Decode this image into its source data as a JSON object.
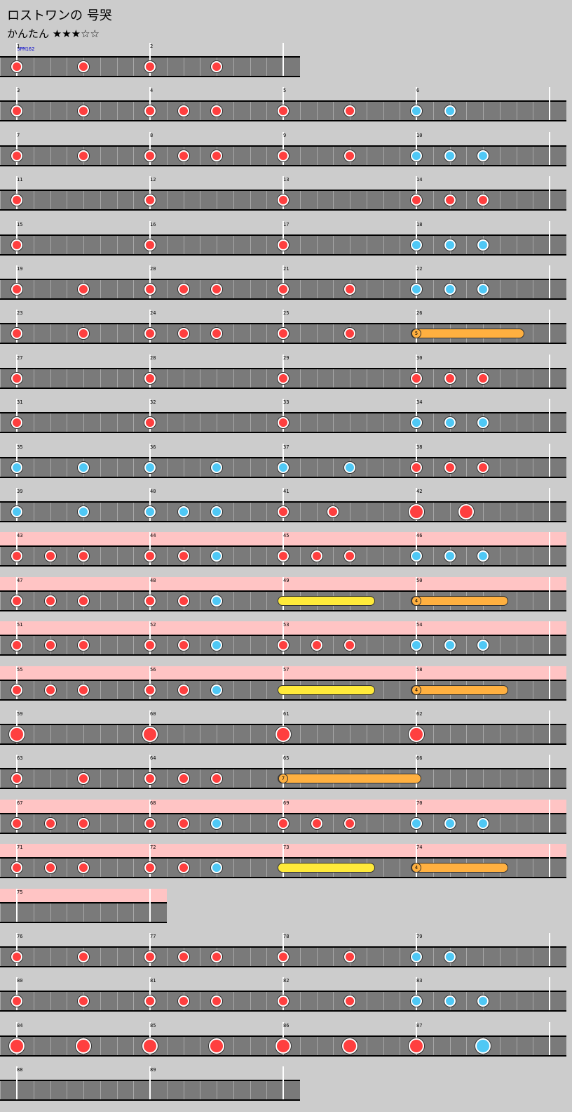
{
  "song": {
    "title": "ロストワンの 号哭",
    "difficulty": "かんたん ★★★☆☆",
    "bpm_label": "BPM162"
  },
  "rows": [
    {
      "measures": [
        1,
        2
      ],
      "pink": false,
      "big": true,
      "notes": [
        [
          "r",
          0
        ],
        [
          "r",
          4
        ],
        [
          "r",
          8
        ],
        [
          "r",
          12
        ]
      ],
      "rolls": []
    },
    {
      "measures": [
        3,
        4,
        5,
        6
      ],
      "pink": false,
      "notes": [
        [
          "r",
          0
        ],
        [
          "r",
          4
        ],
        [
          "r",
          8
        ],
        [
          "r",
          10
        ],
        [
          "r",
          12
        ],
        [
          "r",
          16
        ],
        [
          "r",
          20
        ],
        [
          "b",
          24
        ],
        [
          "b",
          26
        ]
      ],
      "rolls": []
    },
    {
      "measures": [
        7,
        8,
        9,
        10
      ],
      "pink": false,
      "notes": [
        [
          "r",
          0
        ],
        [
          "r",
          4
        ],
        [
          "r",
          8
        ],
        [
          "r",
          10
        ],
        [
          "r",
          12
        ],
        [
          "r",
          16
        ],
        [
          "r",
          20
        ],
        [
          "b",
          24
        ],
        [
          "b",
          26
        ],
        [
          "b",
          28
        ]
      ],
      "rolls": []
    },
    {
      "measures": [
        11,
        12,
        13,
        14
      ],
      "pink": false,
      "notes": [
        [
          "r",
          0
        ],
        [
          "r",
          8
        ],
        [
          "r",
          16
        ],
        [
          "r",
          24
        ],
        [
          "r",
          26
        ],
        [
          "r",
          28
        ]
      ],
      "rolls": []
    },
    {
      "measures": [
        15,
        16,
        17,
        18
      ],
      "pink": false,
      "notes": [
        [
          "r",
          0
        ],
        [
          "r",
          8
        ],
        [
          "r",
          16
        ],
        [
          "b",
          24
        ],
        [
          "b",
          26
        ],
        [
          "b",
          28
        ]
      ],
      "rolls": []
    },
    {
      "measures": [
        19,
        20,
        21,
        22
      ],
      "pink": false,
      "notes": [
        [
          "r",
          0
        ],
        [
          "r",
          4
        ],
        [
          "r",
          8
        ],
        [
          "r",
          10
        ],
        [
          "r",
          12
        ],
        [
          "r",
          16
        ],
        [
          "r",
          20
        ],
        [
          "b",
          24
        ],
        [
          "b",
          26
        ],
        [
          "b",
          28
        ]
      ],
      "rolls": []
    },
    {
      "measures": [
        23,
        24,
        25,
        26
      ],
      "pink": false,
      "notes": [
        [
          "r",
          0
        ],
        [
          "r",
          4
        ],
        [
          "r",
          8
        ],
        [
          "r",
          10
        ],
        [
          "r",
          12
        ],
        [
          "r",
          16
        ],
        [
          "r",
          20
        ]
      ],
      "rolls": [
        [
          "balloon",
          24,
          30.5,
          "5"
        ]
      ]
    },
    {
      "measures": [
        27,
        28,
        29,
        30
      ],
      "pink": false,
      "notes": [
        [
          "r",
          0
        ],
        [
          "r",
          8
        ],
        [
          "r",
          16
        ],
        [
          "r",
          24
        ],
        [
          "r",
          26
        ],
        [
          "r",
          28
        ]
      ],
      "rolls": []
    },
    {
      "measures": [
        31,
        32,
        33,
        34
      ],
      "pink": false,
      "notes": [
        [
          "r",
          0
        ],
        [
          "r",
          8
        ],
        [
          "r",
          16
        ],
        [
          "b",
          24
        ],
        [
          "b",
          26
        ],
        [
          "b",
          28
        ]
      ],
      "rolls": []
    },
    {
      "measures": [
        35,
        36,
        37,
        38
      ],
      "pink": false,
      "notes": [
        [
          "b",
          0
        ],
        [
          "b",
          4
        ],
        [
          "b",
          8
        ],
        [
          "b",
          12
        ],
        [
          "b",
          16
        ],
        [
          "b",
          20
        ],
        [
          "r",
          24
        ],
        [
          "r",
          26
        ],
        [
          "r",
          28
        ]
      ],
      "rolls": []
    },
    {
      "measures": [
        39,
        40,
        41,
        42
      ],
      "pink": false,
      "notes": [
        [
          "b",
          0
        ],
        [
          "b",
          4
        ],
        [
          "b",
          8
        ],
        [
          "b",
          10
        ],
        [
          "b",
          12
        ],
        [
          "r",
          16
        ],
        [
          "r",
          19
        ],
        [
          "R",
          24
        ],
        [
          "R",
          27
        ]
      ],
      "rolls": []
    },
    {
      "measures": [
        43,
        44,
        45,
        46
      ],
      "pink": true,
      "notes": [
        [
          "r",
          0
        ],
        [
          "r",
          2
        ],
        [
          "r",
          4
        ],
        [
          "r",
          8
        ],
        [
          "r",
          10
        ],
        [
          "b",
          12
        ],
        [
          "r",
          16
        ],
        [
          "r",
          18
        ],
        [
          "r",
          20
        ],
        [
          "b",
          24
        ],
        [
          "b",
          26
        ],
        [
          "b",
          28
        ]
      ],
      "rolls": []
    },
    {
      "measures": [
        47,
        48,
        49,
        50
      ],
      "pink": true,
      "notes": [
        [
          "r",
          0
        ],
        [
          "r",
          2
        ],
        [
          "r",
          4
        ],
        [
          "r",
          8
        ],
        [
          "r",
          10
        ],
        [
          "b",
          12
        ]
      ],
      "rolls": [
        [
          "yellow",
          16,
          21.5,
          ""
        ],
        [
          "balloon",
          24,
          29.5,
          "4"
        ]
      ]
    },
    {
      "measures": [
        51,
        52,
        53,
        54
      ],
      "pink": true,
      "notes": [
        [
          "r",
          0
        ],
        [
          "r",
          2
        ],
        [
          "r",
          4
        ],
        [
          "r",
          8
        ],
        [
          "r",
          10
        ],
        [
          "b",
          12
        ],
        [
          "r",
          16
        ],
        [
          "r",
          18
        ],
        [
          "r",
          20
        ],
        [
          "b",
          24
        ],
        [
          "b",
          26
        ],
        [
          "b",
          28
        ]
      ],
      "rolls": []
    },
    {
      "measures": [
        55,
        56,
        57,
        58
      ],
      "pink": true,
      "notes": [
        [
          "r",
          0
        ],
        [
          "r",
          2
        ],
        [
          "r",
          4
        ],
        [
          "r",
          8
        ],
        [
          "r",
          10
        ],
        [
          "b",
          12
        ]
      ],
      "rolls": [
        [
          "yellow",
          16,
          21.5,
          ""
        ],
        [
          "balloon",
          24,
          29.5,
          "4"
        ]
      ]
    },
    {
      "measures": [
        59,
        60,
        61,
        62
      ],
      "pink": false,
      "notes": [
        [
          "R",
          0
        ],
        [
          "R",
          8
        ],
        [
          "R",
          16
        ],
        [
          "R",
          24
        ]
      ],
      "rolls": []
    },
    {
      "measures": [
        63,
        64,
        65,
        66
      ],
      "pink": false,
      "notes": [
        [
          "r",
          0
        ],
        [
          "r",
          4
        ],
        [
          "r",
          8
        ],
        [
          "r",
          10
        ],
        [
          "r",
          12
        ]
      ],
      "rolls": [
        [
          "balloon",
          16,
          24.3,
          "7"
        ]
      ]
    },
    {
      "measures": [
        67,
        68,
        69,
        70
      ],
      "pink": true,
      "notes": [
        [
          "r",
          0
        ],
        [
          "r",
          2
        ],
        [
          "r",
          4
        ],
        [
          "r",
          8
        ],
        [
          "r",
          10
        ],
        [
          "b",
          12
        ],
        [
          "r",
          16
        ],
        [
          "r",
          18
        ],
        [
          "r",
          20
        ],
        [
          "b",
          24
        ],
        [
          "b",
          26
        ],
        [
          "b",
          28
        ]
      ],
      "rolls": []
    },
    {
      "measures": [
        71,
        72,
        73,
        74
      ],
      "pink": true,
      "notes": [
        [
          "r",
          0
        ],
        [
          "r",
          2
        ],
        [
          "r",
          4
        ],
        [
          "r",
          8
        ],
        [
          "r",
          10
        ],
        [
          "b",
          12
        ]
      ],
      "rolls": [
        [
          "yellow",
          16,
          21.5,
          ""
        ],
        [
          "balloon",
          24,
          29.5,
          "4"
        ]
      ]
    },
    {
      "measures": [
        75
      ],
      "pink": true,
      "notes": [],
      "rolls": []
    },
    {
      "measures": [
        76,
        77,
        78,
        79
      ],
      "pink": false,
      "notes": [
        [
          "r",
          0
        ],
        [
          "r",
          4
        ],
        [
          "r",
          8
        ],
        [
          "r",
          10
        ],
        [
          "r",
          12
        ],
        [
          "r",
          16
        ],
        [
          "r",
          20
        ],
        [
          "b",
          24
        ],
        [
          "b",
          26
        ]
      ],
      "rolls": []
    },
    {
      "measures": [
        80,
        81,
        82,
        83
      ],
      "pink": false,
      "notes": [
        [
          "r",
          0
        ],
        [
          "r",
          4
        ],
        [
          "r",
          8
        ],
        [
          "r",
          10
        ],
        [
          "r",
          12
        ],
        [
          "r",
          16
        ],
        [
          "r",
          20
        ],
        [
          "b",
          24
        ],
        [
          "b",
          26
        ],
        [
          "b",
          28
        ]
      ],
      "rolls": []
    },
    {
      "measures": [
        84,
        85,
        86,
        87
      ],
      "pink": false,
      "notes": [
        [
          "R",
          0
        ],
        [
          "R",
          4
        ],
        [
          "R",
          8
        ],
        [
          "R",
          12
        ],
        [
          "R",
          16
        ],
        [
          "R",
          20
        ],
        [
          "R",
          24
        ],
        [
          "B",
          28
        ]
      ],
      "rolls": []
    },
    {
      "measures": [
        88,
        89
      ],
      "pink": false,
      "notes": [],
      "rolls": []
    }
  ]
}
